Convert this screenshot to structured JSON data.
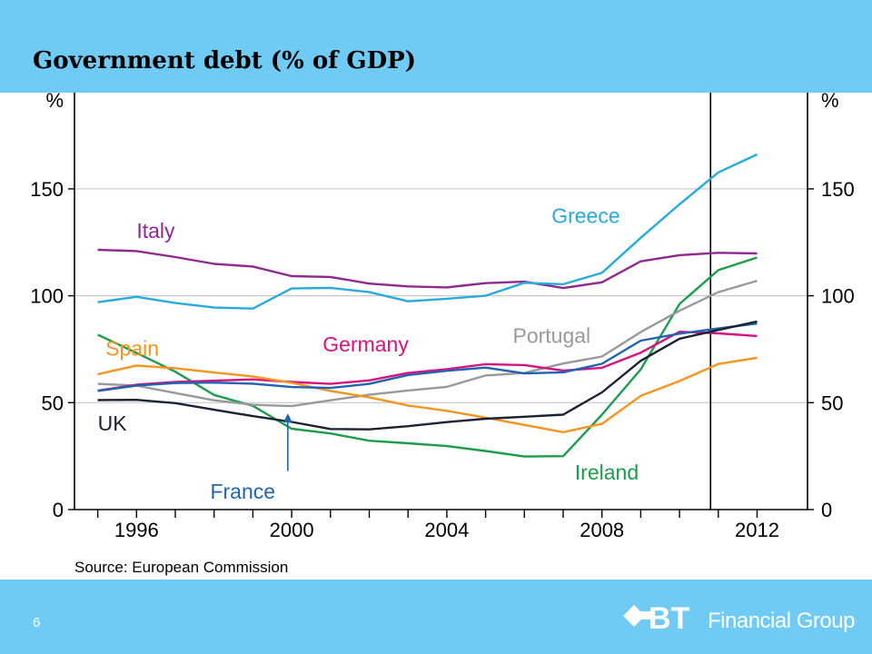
{
  "slide": {
    "title": "Government debt (% of GDP)",
    "page_number": "6",
    "source": "Source: European Commission",
    "colors": {
      "band": "#6fcbf3",
      "text": "#000000"
    }
  },
  "logo": {
    "mark": "BT",
    "text": "Financial Group",
    "icon": "bt-diamond-arrow-icon"
  },
  "chart_data": {
    "type": "line",
    "title": "",
    "xlabel": "",
    "ylabel_left": "%",
    "ylabel_right": "%",
    "xlim": [
      1994.4,
      2013.3
    ],
    "ylim": [
      0,
      195
    ],
    "yticks": [
      0,
      50,
      100,
      150
    ],
    "xticks": [
      1996,
      2000,
      2004,
      2008,
      2012
    ],
    "vertical_marker_x": 2010.8,
    "grid": "horizontal",
    "series": [
      {
        "name": "Italy",
        "color": "#8e2a8f",
        "x": [
          1995,
          1996,
          1997,
          1998,
          1999,
          2000,
          2001,
          2002,
          2003,
          2004,
          2005,
          2006,
          2007,
          2008,
          2009,
          2010,
          2011,
          2012
        ],
        "y": [
          121.5,
          120.9,
          118.1,
          114.9,
          113.7,
          109.2,
          108.8,
          105.7,
          104.4,
          103.9,
          105.9,
          106.6,
          103.6,
          106.3,
          116.1,
          119.0,
          120.1,
          119.8
        ]
      },
      {
        "name": "Greece",
        "color": "#27aae1",
        "x": [
          1995,
          1996,
          1997,
          1998,
          1999,
          2000,
          2001,
          2002,
          2003,
          2004,
          2005,
          2006,
          2007,
          2008,
          2009,
          2010,
          2011,
          2012
        ],
        "y": [
          97.0,
          99.5,
          96.6,
          94.5,
          94.0,
          103.4,
          103.7,
          101.7,
          97.4,
          98.6,
          100.0,
          106.1,
          105.4,
          110.7,
          127.1,
          142.8,
          157.7,
          166.1
        ]
      },
      {
        "name": "Ireland",
        "color": "#1a9e4b",
        "x": [
          1995,
          1996,
          1997,
          1998,
          1999,
          2000,
          2001,
          2002,
          2003,
          2004,
          2005,
          2006,
          2007,
          2008,
          2009,
          2010,
          2011,
          2012
        ],
        "y": [
          81.8,
          73.3,
          64.5,
          53.6,
          48.5,
          37.8,
          35.6,
          32.2,
          31.0,
          29.7,
          27.4,
          24.8,
          25.0,
          44.4,
          65.6,
          96.2,
          112.0,
          117.9
        ]
      },
      {
        "name": "Portugal",
        "color": "#999999",
        "x": [
          1995,
          1996,
          1997,
          1998,
          1999,
          2000,
          2001,
          2002,
          2003,
          2004,
          2005,
          2006,
          2007,
          2008,
          2009,
          2010,
          2011,
          2012
        ],
        "y": [
          58.8,
          58.0,
          54.5,
          51.1,
          49.0,
          48.4,
          51.1,
          53.7,
          55.7,
          57.4,
          62.7,
          63.9,
          68.3,
          71.6,
          83.0,
          93.0,
          101.7,
          107.0
        ]
      },
      {
        "name": "Germany",
        "color": "#d6137f",
        "x": [
          1995,
          1996,
          1997,
          1998,
          1999,
          2000,
          2001,
          2002,
          2003,
          2004,
          2005,
          2006,
          2007,
          2008,
          2009,
          2010,
          2011,
          2012
        ],
        "y": [
          55.6,
          58.4,
          59.7,
          60.3,
          60.9,
          59.7,
          58.8,
          60.4,
          63.9,
          65.7,
          68.0,
          67.6,
          65.0,
          66.3,
          73.4,
          83.2,
          82.4,
          81.2
        ]
      },
      {
        "name": "Spain",
        "color": "#f7941d",
        "x": [
          1995,
          1996,
          1997,
          1998,
          1999,
          2000,
          2001,
          2002,
          2003,
          2004,
          2005,
          2006,
          2007,
          2008,
          2009,
          2010,
          2011,
          2012
        ],
        "y": [
          63.3,
          67.4,
          66.1,
          64.1,
          62.3,
          59.3,
          55.5,
          52.5,
          48.7,
          46.2,
          43.0,
          39.6,
          36.2,
          40.1,
          53.2,
          60.1,
          68.1,
          71.0
        ]
      },
      {
        "name": "France",
        "color": "#1f64b3",
        "x": [
          1995,
          1996,
          1997,
          1998,
          1999,
          2000,
          2001,
          2002,
          2003,
          2004,
          2005,
          2006,
          2007,
          2008,
          2009,
          2010,
          2011,
          2012
        ],
        "y": [
          55.5,
          58.0,
          59.2,
          59.4,
          58.9,
          57.3,
          56.9,
          58.8,
          62.9,
          64.9,
          66.4,
          63.7,
          64.2,
          68.2,
          79.0,
          82.3,
          84.7,
          87.0
        ]
      },
      {
        "name": "UK",
        "color": "#1c2236",
        "x": [
          1995,
          1996,
          1997,
          1998,
          1999,
          2000,
          2001,
          2002,
          2003,
          2004,
          2005,
          2006,
          2007,
          2008,
          2009,
          2010,
          2011,
          2012
        ],
        "y": [
          51.2,
          51.3,
          49.8,
          46.7,
          43.7,
          41.0,
          37.7,
          37.5,
          39.0,
          40.9,
          42.5,
          43.4,
          44.4,
          54.8,
          69.6,
          79.9,
          84.0,
          88.0
        ]
      }
    ],
    "annotations": [
      {
        "text": "Italy",
        "color": "#8e2a8f",
        "x": 1996.0,
        "y": 127
      },
      {
        "text": "Greece",
        "color": "#27aae1",
        "x": 2006.7,
        "y": 134
      },
      {
        "text": "Germany",
        "color": "#d6137f",
        "x": 2000.8,
        "y": 74
      },
      {
        "text": "Portugal",
        "color": "#999999",
        "x": 2005.7,
        "y": 78
      },
      {
        "text": "Spain",
        "color": "#f7941d",
        "x": 1995.2,
        "y": 72
      },
      {
        "text": "UK",
        "color": "#1c2236",
        "x": 1995.0,
        "y": 37
      },
      {
        "text": "France",
        "color": "#1f64b3",
        "x": 1997.9,
        "y": 5
      },
      {
        "text": "Ireland",
        "color": "#1a9e4b",
        "x": 2007.3,
        "y": 14
      }
    ],
    "france_pointer": {
      "from": [
        1999.9,
        18
      ],
      "to": [
        1999.9,
        45
      ]
    }
  }
}
